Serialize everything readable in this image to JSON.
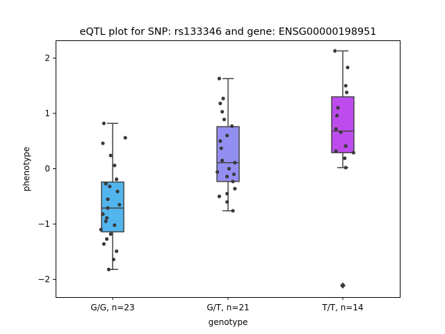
{
  "chart_data": {
    "type": "box",
    "title": "eQTL plot for SNP: rs133346 and gene: ENSG00000198951",
    "xlabel": "genotype",
    "ylabel": "phenotype",
    "ylim": [
      -2.32,
      2.32
    ],
    "yticks": [
      -2,
      -1,
      0,
      1,
      2
    ],
    "ytick_labels": [
      "−2",
      "−1",
      "0",
      "1",
      "2"
    ],
    "categories": [
      "G/G, n=23",
      "G/T, n=21",
      "T/T, n=14"
    ],
    "colors": [
      "#52b5ee",
      "#938ff2",
      "#be4ced"
    ],
    "grid": false,
    "legend": "none",
    "boxes": [
      {
        "q1": -1.14,
        "median": -0.71,
        "q3": -0.24,
        "whisker_low": -1.82,
        "whisker_high": 0.82,
        "outliers": []
      },
      {
        "q1": -0.23,
        "median": 0.11,
        "q3": 0.76,
        "whisker_low": -0.76,
        "whisker_high": 1.63,
        "outliers": []
      },
      {
        "q1": 0.29,
        "median": 0.68,
        "q3": 1.3,
        "whisker_low": 0.02,
        "whisker_high": 2.13,
        "outliers": [
          -2.11
        ]
      }
    ],
    "points": [
      [
        0.82,
        0.56,
        0.46,
        0.24,
        0.06,
        -0.19,
        -0.27,
        -0.32,
        -0.41,
        -0.55,
        -0.65,
        -0.71,
        -0.82,
        -0.89,
        -0.95,
        -1.02,
        -1.1,
        -1.18,
        -1.27,
        -1.36,
        -1.49,
        -1.64,
        -1.82
      ],
      [
        1.63,
        1.27,
        1.18,
        1.03,
        0.89,
        0.77,
        0.6,
        0.5,
        0.37,
        0.15,
        0.11,
        0.0,
        -0.06,
        -0.1,
        -0.14,
        -0.23,
        -0.36,
        -0.45,
        -0.5,
        -0.6,
        -0.76
      ],
      [
        2.13,
        1.83,
        1.5,
        1.38,
        1.1,
        0.96,
        0.72,
        0.66,
        0.41,
        0.32,
        0.29,
        0.19,
        0.02,
        -2.11
      ]
    ]
  }
}
